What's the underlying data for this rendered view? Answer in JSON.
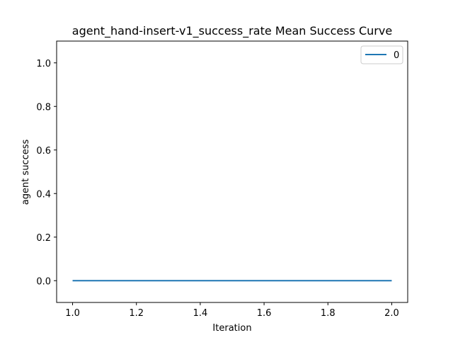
{
  "chart_data": {
    "type": "line",
    "title": "agent_hand-insert-v1_success_rate Mean Success Curve",
    "xlabel": "Iteration",
    "ylabel": "agent success",
    "xlim": [
      0.95,
      2.05
    ],
    "ylim": [
      -0.1,
      1.1
    ],
    "x_ticks": [
      "1.0",
      "1.2",
      "1.4",
      "1.6",
      "1.8",
      "2.0"
    ],
    "y_ticks": [
      "0.0",
      "0.2",
      "0.4",
      "0.6",
      "0.8",
      "1.0"
    ],
    "grid": false,
    "legend": {
      "placement": "upper-right",
      "entries": [
        "0"
      ]
    },
    "series": [
      {
        "name": "0",
        "color": "#1f77b4",
        "x": [
          1.0,
          2.0
        ],
        "y": [
          0.0,
          0.0
        ]
      }
    ]
  }
}
